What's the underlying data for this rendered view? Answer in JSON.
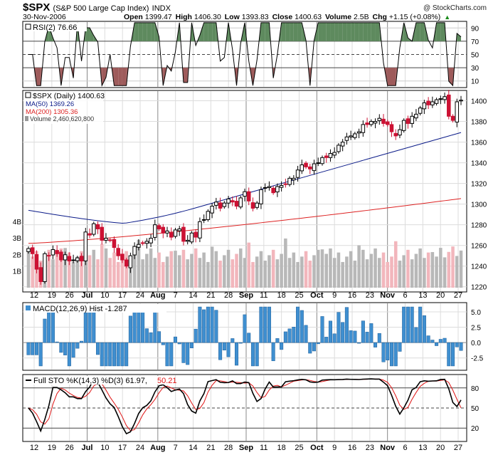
{
  "header": {
    "symbol": "$SPX",
    "name": "(S&P 500 Large Cap Index)",
    "exchange": "INDX",
    "date": "30-Nov-2006",
    "stats": [
      {
        "label": "Open",
        "value": "1399.47"
      },
      {
        "label": "High",
        "value": "1406.30"
      },
      {
        "label": "Low",
        "value": "1393.83"
      },
      {
        "label": "Close",
        "value": "1400.63"
      },
      {
        "label": "Volume",
        "value": "2.5B"
      },
      {
        "label": "Chg",
        "value": "+1.15 (+0.08%)"
      }
    ],
    "arrow": "▲",
    "watermark": "@ StockCharts.com"
  },
  "rsi": {
    "legend": "RSI(2) 76.66",
    "ticks": [
      "90",
      "70",
      "50",
      "30",
      "10"
    ]
  },
  "price": {
    "legend": [
      "$SPX (Daily) 1400.63",
      "MA(50) 1369.26",
      "MA(200) 1305.36",
      "Volume 2,460,620,800"
    ],
    "ticks": [
      "1400",
      "1380",
      "1360",
      "1340",
      "1320",
      "1300",
      "1280",
      "1260",
      "1240",
      "1220"
    ],
    "vol_ticks": [
      "4B",
      "3B",
      "2B",
      "1B"
    ]
  },
  "macd": {
    "legend": "MACD(12,26,9) Hist -1.287",
    "ticks": [
      "5.0",
      "2.5",
      "0.0",
      "-2.5"
    ]
  },
  "sto": {
    "legend_a": "Full STO %K(14,3) %D(3) 61.97,",
    "legend_b": "50.21",
    "ticks": [
      "80",
      "50",
      "20"
    ]
  },
  "xaxis": {
    "labels": [
      "12",
      "19",
      "26",
      "Jul",
      "10",
      "17",
      "24",
      "Aug",
      "7",
      "14",
      "21",
      "28",
      "Sep",
      "11",
      "18",
      "25",
      "Oct",
      "9",
      "16",
      "23",
      "Nov",
      "6",
      "13",
      "20",
      "27"
    ]
  },
  "colors": {
    "up": "#000000",
    "down": "#cc1133",
    "ma50": "#0a1a88",
    "ma200": "#dd2222",
    "rsi_green": "#5e8a5e",
    "rsi_red": "#9e5b5b",
    "macd": "#3f8fd0",
    "vol_up": "#b8b8b8",
    "vol_down": "#f2b6bc"
  },
  "chart_data": {
    "type": "candlestick",
    "title": "$SPX (S&P 500 Large Cap Index) INDX",
    "date": "30-Nov-2006",
    "x_start": "2006-06-08",
    "x_end": "2006-11-30",
    "ylim": [
      1215,
      1410
    ],
    "close_approx": [
      1257,
      1252,
      1237,
      1225,
      1252,
      1250,
      1256,
      1252,
      1246,
      1251,
      1245,
      1246,
      1248,
      1245,
      1273,
      1270,
      1281,
      1276,
      1265,
      1267,
      1265,
      1258,
      1250,
      1246,
      1240,
      1250,
      1259,
      1261,
      1262,
      1264,
      1267,
      1280,
      1276,
      1272,
      1274,
      1268,
      1275,
      1276,
      1264,
      1265,
      1272,
      1268,
      1283,
      1285,
      1293,
      1298,
      1302,
      1296,
      1301,
      1305,
      1302,
      1298,
      1306,
      1312,
      1303,
      1296,
      1301,
      1314,
      1316,
      1317,
      1311,
      1317,
      1318,
      1319,
      1325,
      1325,
      1333,
      1338,
      1336,
      1334,
      1339,
      1340,
      1345,
      1345,
      1349,
      1350,
      1357,
      1360,
      1365,
      1366,
      1368,
      1370,
      1377,
      1377,
      1380,
      1380,
      1383,
      1378,
      1377,
      1370,
      1366,
      1372,
      1381,
      1378,
      1385,
      1387,
      1393,
      1398,
      1396,
      1399,
      1401,
      1402,
      1404,
      1385,
      1381,
      1399,
      1400.63
    ],
    "ma50_final": 1369.26,
    "ma200_final": 1305.36,
    "volume_final": 2460620800,
    "rsi_final": 76.66,
    "macd_hist_final": -1.287,
    "sto_k_final": 61.97,
    "sto_d_final": 50.21,
    "rsi_ylim": [
      0,
      100
    ],
    "macd_ylim": [
      -4.5,
      6.5
    ],
    "sto_ylim": [
      0,
      100
    ]
  }
}
